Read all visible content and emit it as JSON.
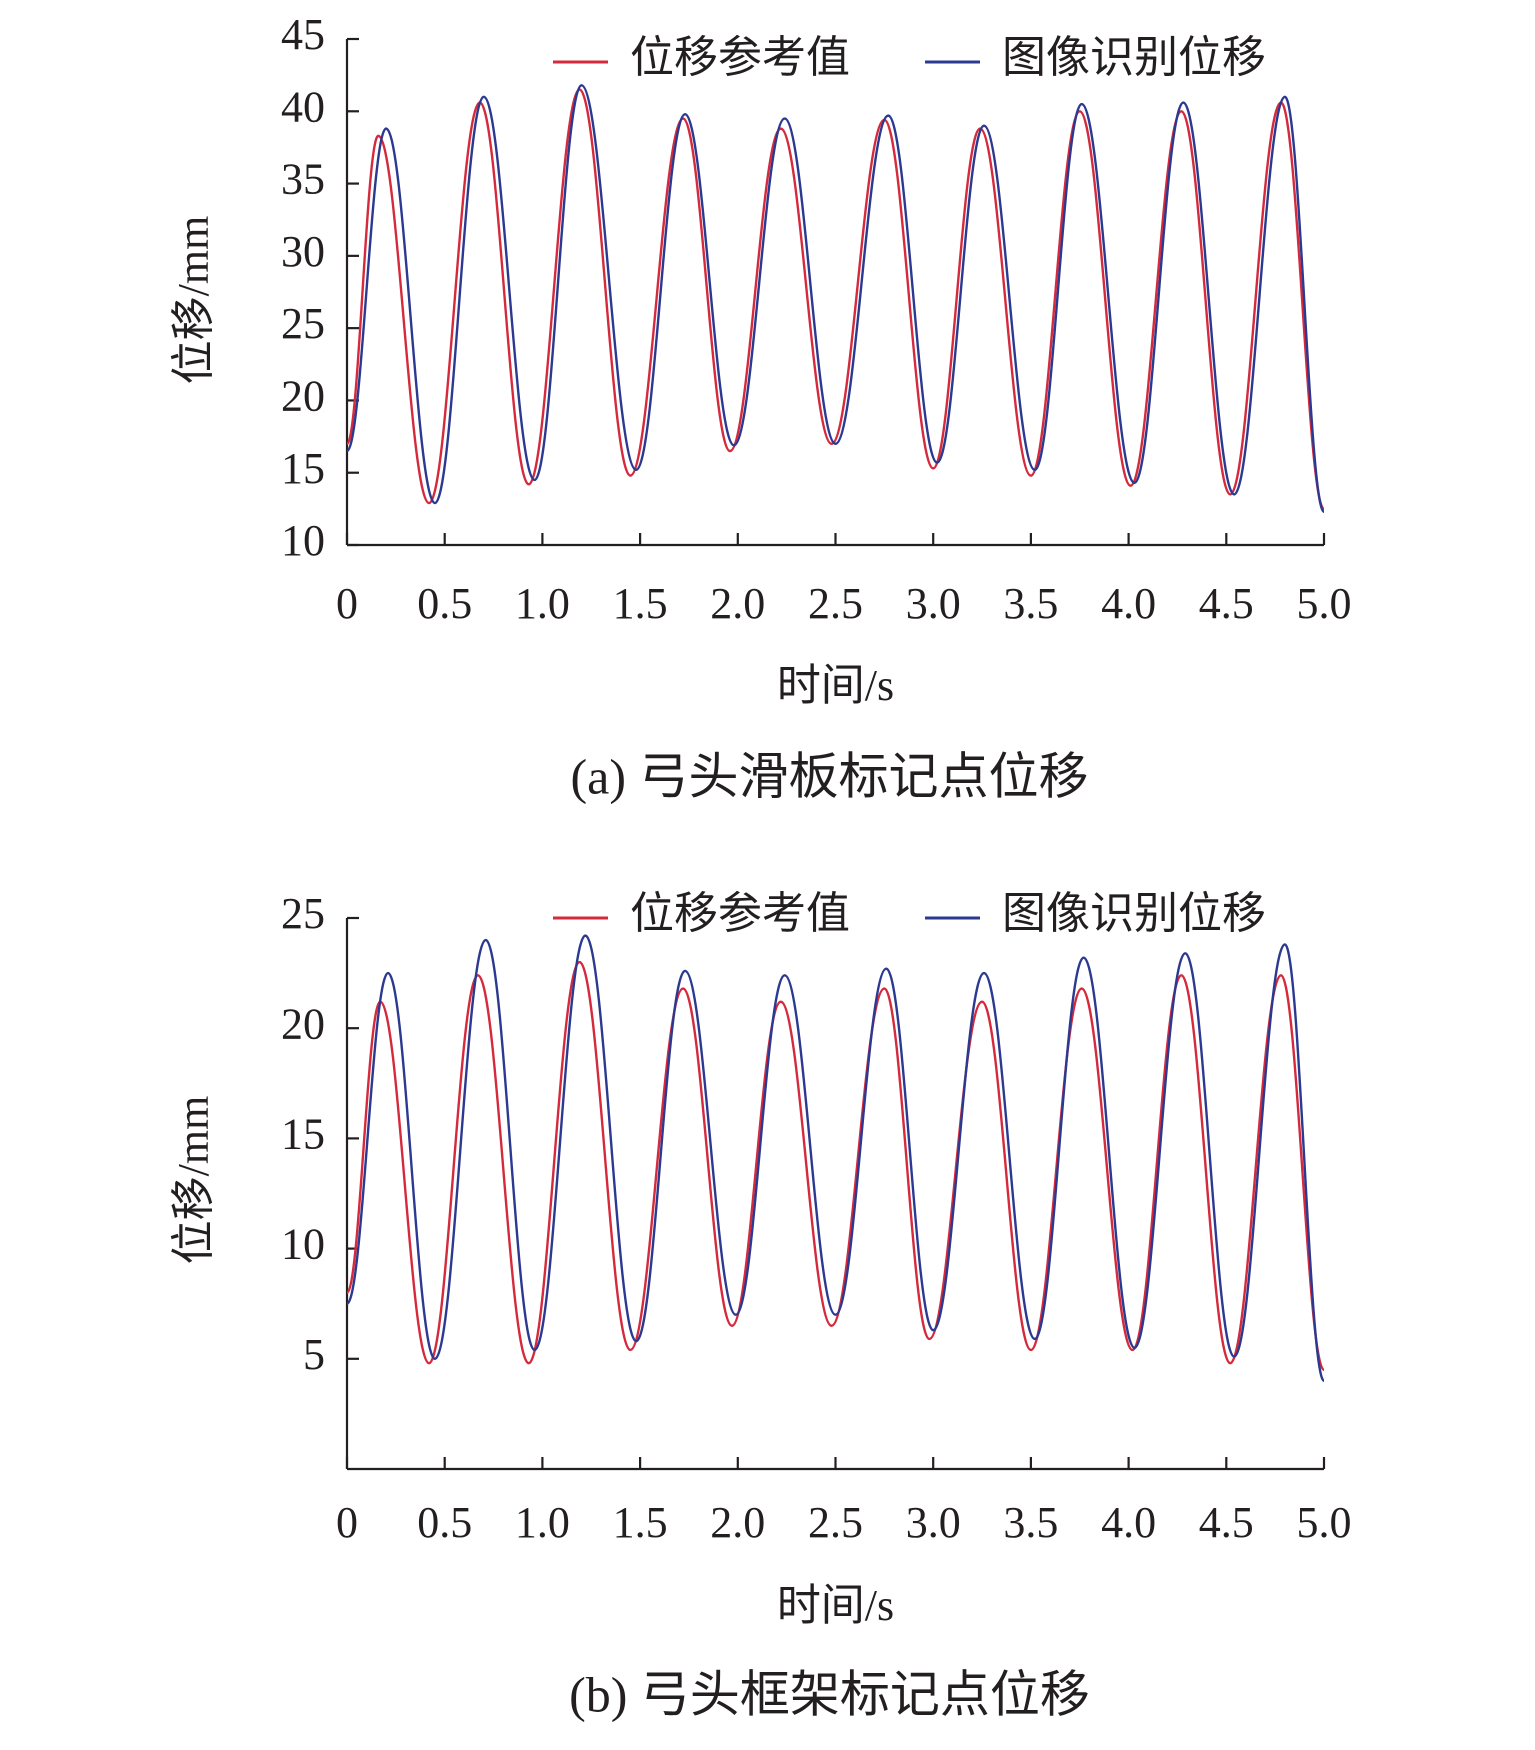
{
  "chart_data": [
    {
      "type": "line",
      "caption": "(a) 弓头滑板标记点位移",
      "x_label": "时间/s",
      "y_label": "位移/mm",
      "xlim": [
        0,
        5
      ],
      "xticks": [
        0,
        0.5,
        {
          "value": 1,
          "label": "1.0"
        },
        1.5,
        {
          "value": 2,
          "label": "2.0"
        },
        2.5,
        {
          "value": 3,
          "label": "3.0"
        },
        3.5,
        {
          "value": 4,
          "label": "4.0"
        },
        4.5,
        {
          "value": 5,
          "label": "5.0"
        }
      ],
      "ylim": [
        10,
        45
      ],
      "yticks": [
        10,
        15,
        20,
        25,
        30,
        35,
        40,
        45
      ],
      "legend": "upper right",
      "series": [
        {
          "name": "位移参考值",
          "color": "#d42a3c",
          "x": [
            0,
            0.16,
            0.42,
            0.68,
            0.93,
            1.19,
            1.45,
            1.72,
            1.96,
            2.22,
            2.48,
            2.75,
            3.0,
            3.24,
            3.5,
            3.75,
            4.01,
            4.27,
            4.52,
            4.78,
            5.0
          ],
          "values": [
            17,
            38.3,
            12.9,
            40.6,
            14.2,
            41.5,
            14.8,
            39.5,
            16.5,
            38.8,
            17,
            39.4,
            15.3,
            38.8,
            14.8,
            40,
            14.1,
            40,
            13.5,
            40.6,
            12.5
          ]
        },
        {
          "name": "图像识别位移",
          "color": "#2b3990",
          "x": [
            0,
            0.2,
            0.45,
            0.7,
            0.96,
            1.2,
            1.48,
            1.73,
            1.98,
            2.24,
            2.5,
            2.77,
            3.02,
            3.26,
            3.52,
            3.76,
            4.03,
            4.28,
            4.54,
            4.8,
            5.0
          ],
          "values": [
            16.5,
            38.8,
            12.9,
            41,
            14.5,
            41.8,
            15.2,
            39.8,
            16.9,
            39.5,
            17,
            39.7,
            15.7,
            39,
            15.2,
            40.5,
            14.3,
            40.6,
            13.5,
            41,
            12.3
          ]
        }
      ]
    },
    {
      "type": "line",
      "caption": "(b) 弓头框架标记点位移",
      "x_label": "时间/s",
      "y_label": "位移/mm",
      "xlim": [
        0,
        5
      ],
      "xticks": [
        0,
        0.5,
        {
          "value": 1,
          "label": "1.0"
        },
        1.5,
        {
          "value": 2,
          "label": "2.0"
        },
        2.5,
        {
          "value": 3,
          "label": "3.0"
        },
        3.5,
        {
          "value": 4,
          "label": "4.0"
        },
        4.5,
        {
          "value": 5,
          "label": "5.0"
        }
      ],
      "ylim": [
        0,
        25
      ],
      "yticks": [
        5,
        10,
        15,
        20,
        25
      ],
      "legend": "upper right",
      "series": [
        {
          "name": "位移参考值",
          "color": "#d42a3c",
          "x": [
            0,
            0.17,
            0.42,
            0.67,
            0.93,
            1.19,
            1.45,
            1.72,
            1.97,
            2.22,
            2.48,
            2.75,
            2.98,
            3.25,
            3.5,
            3.76,
            4.02,
            4.27,
            4.52,
            4.78,
            5.0
          ],
          "values": [
            8,
            21.2,
            4.8,
            22.4,
            4.8,
            23,
            5.4,
            21.8,
            6.5,
            21.2,
            6.5,
            21.8,
            5.9,
            21.2,
            5.4,
            21.8,
            5.4,
            22.4,
            4.8,
            22.4,
            4.5
          ]
        },
        {
          "name": "图像识别位移",
          "color": "#2b3990",
          "x": [
            0,
            0.21,
            0.45,
            0.71,
            0.96,
            1.22,
            1.48,
            1.73,
            1.99,
            2.24,
            2.5,
            2.76,
            3.0,
            3.26,
            3.52,
            3.77,
            4.03,
            4.29,
            4.54,
            4.8,
            5.0
          ],
          "values": [
            7.5,
            22.5,
            5,
            24,
            5.4,
            24.2,
            5.8,
            22.6,
            7,
            22.4,
            7,
            22.7,
            6.3,
            22.5,
            5.9,
            23.2,
            5.5,
            23.4,
            5.1,
            23.8,
            4
          ]
        }
      ]
    }
  ]
}
